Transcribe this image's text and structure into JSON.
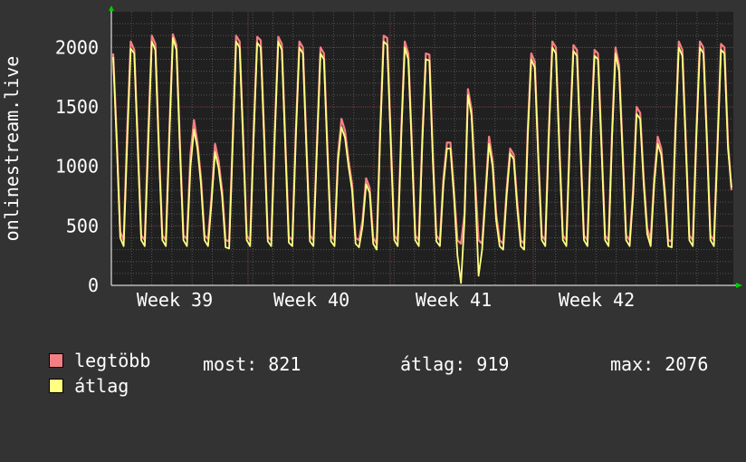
{
  "chart_data": {
    "type": "line",
    "ylabel": "onlinestream.live",
    "ylim": [
      0,
      2300
    ],
    "yticks": [
      0,
      500,
      1000,
      1500,
      2000
    ],
    "x_labels": [
      "Week 39",
      "Week 40",
      "Week 41",
      "Week 42"
    ],
    "grid": true,
    "series": [
      {
        "name": "legtöbb",
        "color": "#f47f83",
        "values": [
          1950,
          1250,
          450,
          380,
          1300,
          2050,
          1980,
          1200,
          420,
          380,
          1300,
          2100,
          2030,
          1200,
          420,
          380,
          1300,
          2110,
          2020,
          1200,
          420,
          390,
          1100,
          1390,
          1200,
          900,
          420,
          390,
          750,
          1190,
          1050,
          800,
          380,
          370,
          1200,
          2100,
          2050,
          1250,
          420,
          380,
          1300,
          2090,
          2060,
          1250,
          410,
          380,
          1300,
          2090,
          2030,
          1200,
          410,
          380,
          1300,
          2050,
          2000,
          1200,
          420,
          380,
          1200,
          2000,
          1950,
          1150,
          420,
          380,
          1100,
          1400,
          1300,
          1050,
          850,
          400,
          380,
          550,
          900,
          820,
          400,
          350,
          1300,
          2100,
          2080,
          1250,
          420,
          380,
          1300,
          2050,
          1950,
          1200,
          420,
          380,
          1250,
          1950,
          1940,
          1100,
          420,
          380,
          900,
          1200,
          1200,
          800,
          380,
          350,
          600,
          1650,
          1480,
          900,
          380,
          350,
          800,
          1250,
          1050,
          600,
          380,
          350,
          800,
          1150,
          1100,
          700,
          380,
          350,
          1300,
          1950,
          1880,
          1100,
          420,
          380,
          1300,
          2050,
          2000,
          1200,
          420,
          380,
          1300,
          2020,
          1980,
          1200,
          420,
          380,
          1300,
          1980,
          1950,
          1200,
          420,
          380,
          1300,
          2000,
          1850,
          1150,
          420,
          380,
          800,
          1500,
          1450,
          900,
          480,
          380,
          900,
          1250,
          1150,
          800,
          380,
          370,
          1300,
          2050,
          1980,
          1200,
          420,
          380,
          1300,
          2050,
          2000,
          1250,
          420,
          380,
          1200,
          2030,
          2000,
          1200,
          800
        ]
      },
      {
        "name": "átlag",
        "color": "#ffff80",
        "values": [
          1920,
          1200,
          400,
          330,
          1200,
          1990,
          1950,
          1150,
          380,
          330,
          1200,
          2050,
          1980,
          1150,
          380,
          330,
          1250,
          2080,
          1980,
          1150,
          380,
          330,
          1000,
          1310,
          1150,
          850,
          380,
          330,
          700,
          1120,
          990,
          750,
          320,
          310,
          1150,
          2050,
          2000,
          1200,
          380,
          330,
          1250,
          2040,
          2000,
          1200,
          370,
          330,
          1250,
          2050,
          1980,
          1150,
          360,
          330,
          1250,
          2000,
          1950,
          1150,
          370,
          330,
          1150,
          1950,
          1900,
          1100,
          370,
          330,
          1050,
          1330,
          1240,
          1000,
          800,
          350,
          320,
          500,
          850,
          780,
          350,
          300,
          1250,
          2050,
          2020,
          1200,
          380,
          330,
          1250,
          2000,
          1900,
          1150,
          380,
          330,
          1200,
          1900,
          1890,
          1050,
          370,
          330,
          850,
          1150,
          1150,
          750,
          250,
          20,
          550,
          1600,
          1430,
          850,
          80,
          300,
          750,
          1190,
          1000,
          550,
          330,
          300,
          750,
          1110,
          1060,
          650,
          330,
          300,
          1250,
          1900,
          1830,
          1050,
          380,
          330,
          1250,
          2000,
          1950,
          1150,
          380,
          330,
          1250,
          1970,
          1930,
          1150,
          380,
          330,
          1250,
          1930,
          1900,
          1150,
          380,
          330,
          1250,
          1950,
          1800,
          1100,
          380,
          330,
          750,
          1440,
          1400,
          850,
          430,
          330,
          850,
          1190,
          1100,
          750,
          330,
          320,
          1250,
          2000,
          1930,
          1150,
          380,
          330,
          1250,
          2000,
          1950,
          1200,
          380,
          330,
          1150,
          1980,
          1950,
          1150,
          821
        ]
      }
    ],
    "legend": {
      "max_label": "legtöbb",
      "avg_label": "átlag",
      "current_label": "most:",
      "current_value": "821",
      "mean_label": "átlag:",
      "mean_value": "919",
      "peak_label": "max:",
      "peak_value": "2076"
    }
  }
}
